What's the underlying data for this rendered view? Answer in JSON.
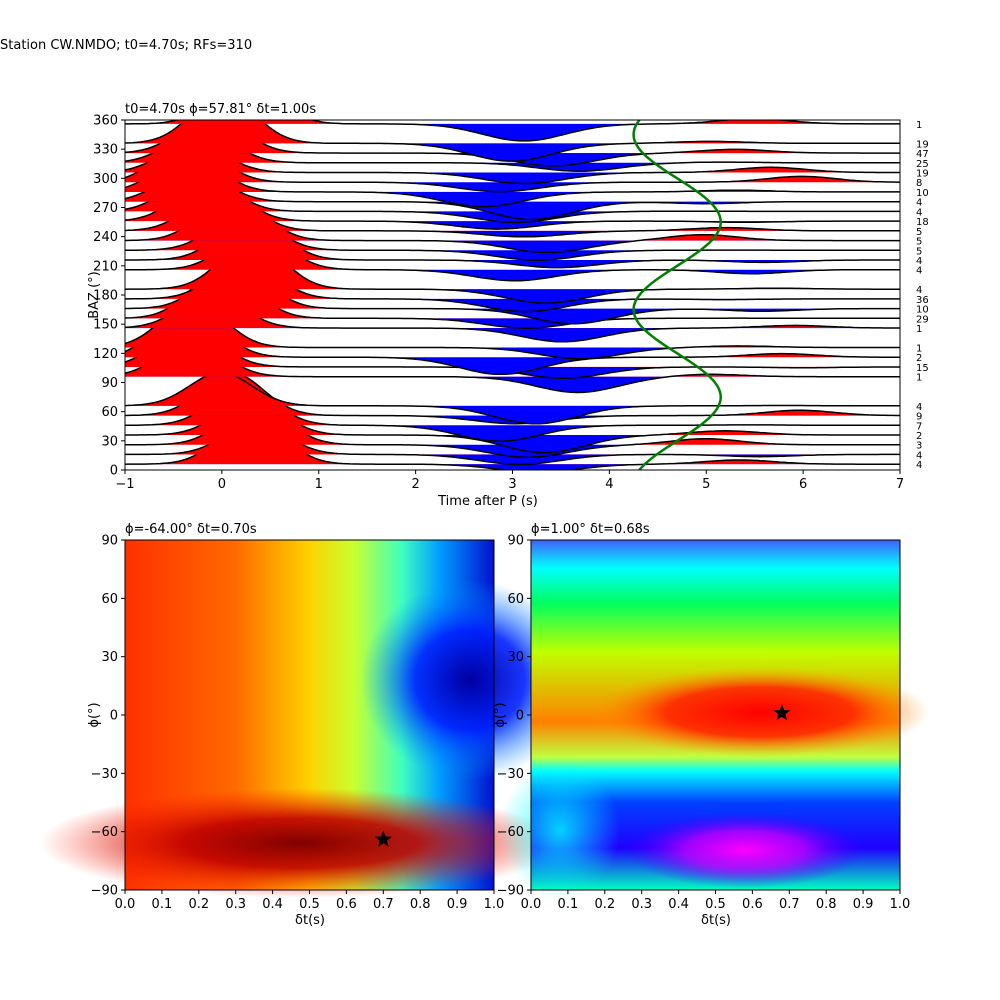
{
  "figure": {
    "suptitle": "Station CW.NMDO; t0=4.70s; RFs=310"
  },
  "chart_data": [
    {
      "type": "line",
      "panel": "receiver-functions",
      "title": "t0=4.70s ϕ=57.81° δt=1.00s",
      "xlabel": "Time after P (s)",
      "ylabel": "BAZ (°)",
      "xlim": [
        -1,
        7
      ],
      "ylim": [
        0,
        360
      ],
      "xticks": [
        -1,
        0,
        1,
        2,
        3,
        4,
        5,
        6,
        7
      ],
      "yticks": [
        0,
        30,
        60,
        90,
        120,
        150,
        180,
        210,
        240,
        270,
        300,
        330,
        360
      ],
      "positive_fill": "#ff0000",
      "negative_fill": "#0000ff",
      "fit_curve_color": "#008000",
      "grid": false,
      "bin_counts": [
        {
          "baz": 356,
          "count": "1"
        },
        {
          "baz": 336,
          "count": "19"
        },
        {
          "baz": 326,
          "count": "47"
        },
        {
          "baz": 316,
          "count": "25"
        },
        {
          "baz": 306,
          "count": "19"
        },
        {
          "baz": 296,
          "count": "8"
        },
        {
          "baz": 286,
          "count": "10"
        },
        {
          "baz": 276,
          "count": "4"
        },
        {
          "baz": 266,
          "count": "4"
        },
        {
          "baz": 256,
          "count": "18"
        },
        {
          "baz": 246,
          "count": "5"
        },
        {
          "baz": 236,
          "count": "5"
        },
        {
          "baz": 226,
          "count": "5"
        },
        {
          "baz": 216,
          "count": "4"
        },
        {
          "baz": 206,
          "count": "4"
        },
        {
          "baz": 186,
          "count": "4"
        },
        {
          "baz": 176,
          "count": "36"
        },
        {
          "baz": 166,
          "count": "10"
        },
        {
          "baz": 156,
          "count": "29"
        },
        {
          "baz": 146,
          "count": "1"
        },
        {
          "baz": 126,
          "count": "1"
        },
        {
          "baz": 116,
          "count": "2"
        },
        {
          "baz": 106,
          "count": "15"
        },
        {
          "baz": 96,
          "count": "1"
        },
        {
          "baz": 66,
          "count": "4"
        },
        {
          "baz": 56,
          "count": "9"
        },
        {
          "baz": 46,
          "count": "7"
        },
        {
          "baz": 36,
          "count": "2"
        },
        {
          "baz": 26,
          "count": "3"
        },
        {
          "baz": 16,
          "count": "4"
        },
        {
          "baz": 6,
          "count": "4"
        }
      ]
    },
    {
      "type": "heatmap",
      "panel": "grid-search-left",
      "title": "ϕ=-64.00° δt=0.70s",
      "xlabel": "δt(s)",
      "ylabel": "ϕ(°)",
      "xlim": [
        0,
        1
      ],
      "ylim": [
        -90,
        90
      ],
      "xticks": [
        "0.0",
        "0.1",
        "0.2",
        "0.3",
        "0.4",
        "0.5",
        "0.6",
        "0.7",
        "0.8",
        "0.9",
        "1.0"
      ],
      "yticks": [
        -90,
        -60,
        -30,
        0,
        30,
        60,
        90
      ],
      "colormap": "jet",
      "best": {
        "dt": 0.7,
        "phi": -64.0
      }
    },
    {
      "type": "heatmap",
      "panel": "grid-search-right",
      "title": "ϕ=1.00° δt=0.68s",
      "xlabel": "δt(s)",
      "ylabel": "ϕ(°)",
      "xlim": [
        0,
        1
      ],
      "ylim": [
        -90,
        90
      ],
      "xticks": [
        "0.0",
        "0.1",
        "0.2",
        "0.3",
        "0.4",
        "0.5",
        "0.6",
        "0.7",
        "0.8",
        "0.9",
        "1.0"
      ],
      "yticks": [
        -90,
        -60,
        -30,
        0,
        30,
        60,
        90
      ],
      "colormap": "hsv",
      "best": {
        "dt": 0.68,
        "phi": 1.0
      }
    }
  ]
}
